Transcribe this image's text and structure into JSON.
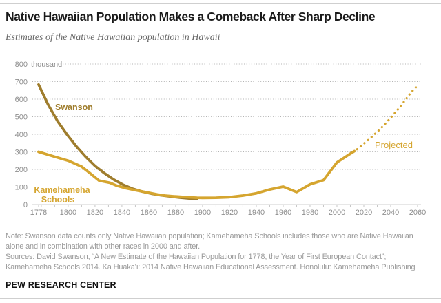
{
  "header": {
    "title": "Native Hawaiian Population Makes a Comeback After Sharp Decline",
    "subtitle": "Estimates of the Native Hawaiian population in Hawaii"
  },
  "footer": {
    "note_lines": [
      "Note: Swanson data counts only Native Hawaiian population; Kamehameha Schools includes those who are Native Hawaiian",
      "alone and in combination with other races in 2000 and after.",
      "Sources: David Swanson, “A New Estimate of the Hawaiian Population for 1778, the Year of First European Contact”;",
      "Kamehameha Schools 2014. Ka Huakaʻi: 2014 Native Hawaiian Educational Assessment. Honolulu: Kamehameha Publishing"
    ],
    "brand": "PEW RESEARCH CENTER"
  },
  "chart_data": {
    "type": "line",
    "title": "Estimates of the Native Hawaiian population in Hawaii",
    "unit": "thousand",
    "xlim": [
      1778,
      2060
    ],
    "ylim": [
      0,
      800
    ],
    "grid": "dotted-horizontal",
    "legend_position": "inline-annotations",
    "y_axis": {
      "ticks": [
        800,
        700,
        600,
        500,
        400,
        300,
        200,
        100,
        0
      ],
      "unit_suffix": "thousand"
    },
    "x_axis": {
      "labeled_ticks": [
        1778,
        1800,
        1820,
        1840,
        1860,
        1880,
        1900,
        1920,
        1940,
        1960,
        1980,
        2000,
        2020,
        2040,
        2060
      ],
      "first_tick": 1778,
      "minor_tick_start": 1780,
      "minor_tick_step": 10,
      "minor_tick_end": 2060
    },
    "series": [
      {
        "id": "swanson",
        "name": "Swanson",
        "color": "#9f7d2d",
        "style": "solid",
        "points": [
          [
            1778,
            683
          ],
          [
            1785,
            570
          ],
          [
            1792,
            476
          ],
          [
            1799,
            400
          ],
          [
            1806,
            332
          ],
          [
            1813,
            272
          ],
          [
            1820,
            220
          ],
          [
            1827,
            178
          ],
          [
            1834,
            142
          ],
          [
            1841,
            112
          ],
          [
            1848,
            90
          ],
          [
            1855,
            74
          ],
          [
            1862,
            62
          ],
          [
            1869,
            53
          ],
          [
            1876,
            46
          ],
          [
            1883,
            40
          ],
          [
            1890,
            35
          ],
          [
            1896,
            31
          ]
        ]
      },
      {
        "id": "kamehameha-schools",
        "name": "Kamehameha Schools",
        "label_lines": [
          "Kamehameha",
          "Schools"
        ],
        "color": "#d5a52f",
        "style": "solid",
        "points": [
          [
            1778,
            300
          ],
          [
            1790,
            272
          ],
          [
            1800,
            250
          ],
          [
            1810,
            216
          ],
          [
            1816,
            180
          ],
          [
            1823,
            136
          ],
          [
            1831,
            124
          ],
          [
            1836,
            108
          ],
          [
            1843,
            93
          ],
          [
            1850,
            82
          ],
          [
            1860,
            67
          ],
          [
            1866,
            58
          ],
          [
            1872,
            51
          ],
          [
            1878,
            47
          ],
          [
            1884,
            44
          ],
          [
            1890,
            41
          ],
          [
            1896,
            39
          ],
          [
            1900,
            38
          ],
          [
            1910,
            39
          ],
          [
            1920,
            42
          ],
          [
            1930,
            51
          ],
          [
            1940,
            64
          ],
          [
            1950,
            86
          ],
          [
            1960,
            102
          ],
          [
            1970,
            71
          ],
          [
            1980,
            115
          ],
          [
            1990,
            139
          ],
          [
            2000,
            240
          ],
          [
            2010,
            290
          ],
          [
            2013,
            304
          ]
        ]
      },
      {
        "id": "projected",
        "name": "Projected",
        "color": "#d5a52f",
        "style": "dotted",
        "points": [
          [
            2015,
            315
          ],
          [
            2019,
            340
          ],
          [
            2023,
            366
          ],
          [
            2027,
            393
          ],
          [
            2031,
            421
          ],
          [
            2035,
            452
          ],
          [
            2039,
            485
          ],
          [
            2043,
            520
          ],
          [
            2047,
            557
          ],
          [
            2051,
            596
          ],
          [
            2055,
            637
          ],
          [
            2060,
            678
          ]
        ]
      }
    ]
  }
}
